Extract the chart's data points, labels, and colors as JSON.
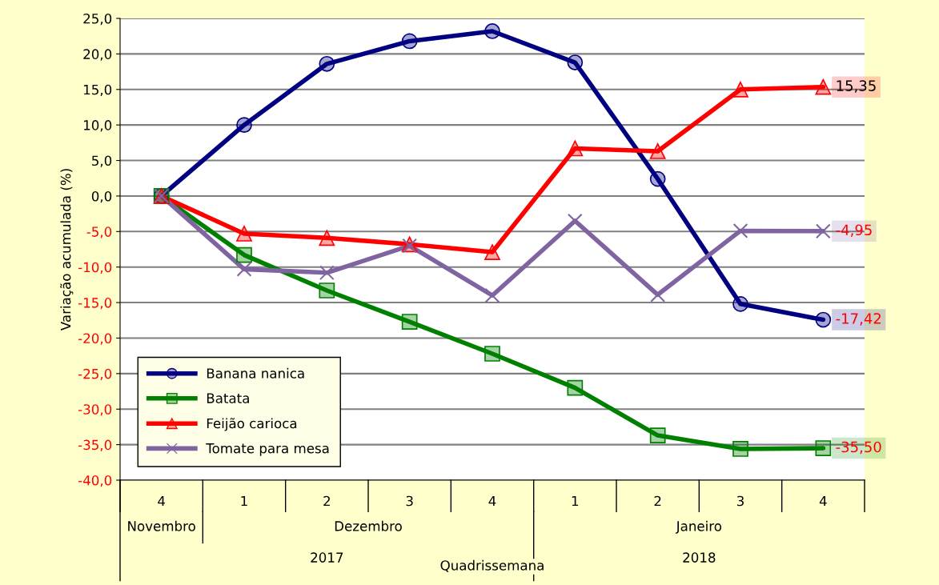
{
  "chart_data": {
    "type": "line",
    "ylabel": "Variação acumulada (%)",
    "xlabel": "Quadrissemana",
    "categories": [
      "4",
      "1",
      "2",
      "3",
      "4",
      "1",
      "2",
      "3",
      "4"
    ],
    "ylim": [
      -40,
      25
    ],
    "yticks": [
      {
        "value": -40,
        "label": "-40,0"
      },
      {
        "value": -35,
        "label": "-35,0"
      },
      {
        "value": -30,
        "label": "-30,0"
      },
      {
        "value": -25,
        "label": "-25,0"
      },
      {
        "value": -20,
        "label": "-20,0"
      },
      {
        "value": -15,
        "label": "-15,0"
      },
      {
        "value": -10,
        "label": "-10,0"
      },
      {
        "value": -5,
        "label": "-5,0"
      },
      {
        "value": 0,
        "label": "0,0"
      },
      {
        "value": 5,
        "label": "5,0"
      },
      {
        "value": 10,
        "label": "10,0"
      },
      {
        "value": 15,
        "label": "15,0"
      },
      {
        "value": 20,
        "label": "20,0"
      },
      {
        "value": 25,
        "label": "25,0"
      }
    ],
    "grid": "y",
    "legend": "bottom left",
    "line_style": "solid",
    "annotations": [
      "Novembro",
      "Dezembro",
      "Janeiro",
      "2017",
      "2018"
    ],
    "series": [
      {
        "name": "Banana nanica",
        "color": "#000080",
        "marker": "circle",
        "values": [
          0,
          10.0,
          18.6,
          21.8,
          23.2,
          18.8,
          2.4,
          -15.2,
          -17.42
        ],
        "value_labels": [
          null,
          null,
          null,
          null,
          null,
          null,
          null,
          null,
          "-17,42"
        ]
      },
      {
        "name": "Batata",
        "color": "#008000",
        "marker": "square",
        "values": [
          0,
          -8.3,
          -13.3,
          -17.7,
          -22.2,
          -27.0,
          -33.7,
          -35.6,
          -35.5
        ],
        "value_labels": [
          null,
          null,
          null,
          null,
          null,
          null,
          null,
          null,
          "-35,50"
        ]
      },
      {
        "name": "Feijão carioca",
        "color": "#ff0000",
        "marker": "triangle",
        "values": [
          0,
          -5.3,
          -5.9,
          -6.8,
          -7.9,
          6.7,
          6.3,
          15.0,
          15.35
        ],
        "value_labels": [
          null,
          null,
          null,
          null,
          null,
          null,
          null,
          null,
          "15,35"
        ]
      },
      {
        "name": "Tomate para mesa",
        "color": "#8064a2",
        "marker": "cross",
        "values": [
          0,
          -10.3,
          -10.8,
          -7.0,
          -14.0,
          -3.5,
          -13.9,
          -4.9,
          -4.95
        ],
        "value_labels": [
          null,
          null,
          null,
          null,
          null,
          null,
          null,
          null,
          "-4,95"
        ]
      }
    ]
  }
}
